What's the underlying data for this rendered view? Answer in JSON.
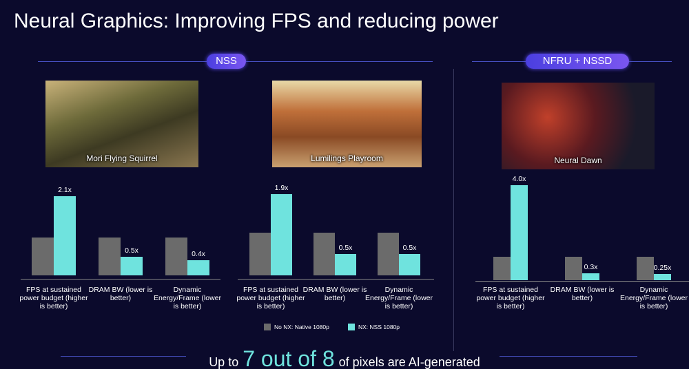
{
  "slide": {
    "title": "Neural Graphics: Improving FPS and reducing power",
    "sections": [
      "NSS",
      "NFRU + NSSD"
    ],
    "images": [
      "Mori Flying Squirrel",
      "Lumilings Playroom",
      "Neural Dawn"
    ],
    "footer": [
      "Up to",
      "7 out of 8",
      "of pixels are AI-generated"
    ]
  },
  "chart_data": [
    {
      "type": "bar",
      "categories": [
        "FPS at sustained power budget (higher is better)",
        "DRAM BW (lower is better)",
        "Dynamic Energy/Frame (lower is better)"
      ],
      "series": [
        {
          "color": "#6b6b6b",
          "values": [
            1,
            1,
            1
          ]
        },
        {
          "color": "#6fe3de",
          "values": [
            2.1,
            0.5,
            0.4
          ],
          "value_labels": [
            "2.1x",
            "0.5x",
            "0.4x"
          ]
        }
      ]
    },
    {
      "type": "bar",
      "categories": [
        "FPS at sustained power budget (higher is better)",
        "DRAM BW (lower is better)",
        "Dynamic Energy/Frame (lower is better)"
      ],
      "series": [
        {
          "name": "No NX: Native 1080p",
          "color": "#6b6b6b",
          "values": [
            1,
            1,
            1
          ]
        },
        {
          "name": "NX: NSS 1080p",
          "color": "#6fe3de",
          "values": [
            1.9,
            0.5,
            0.5
          ],
          "value_labels": [
            "1.9x",
            "0.5x",
            "0.5x"
          ]
        }
      ]
    },
    {
      "type": "bar",
      "categories": [
        "FPS at sustained power budget (higher is better)",
        "DRAM BW (lower is better)",
        "Dynamic Energy/Frame (lower is better)"
      ],
      "series": [
        {
          "color": "#6b6b6b",
          "values": [
            1,
            1,
            1
          ]
        },
        {
          "color": "#6fe3de",
          "values": [
            4.0,
            0.3,
            0.25
          ],
          "value_labels": [
            "4.0x",
            "0.3x",
            "0.25x"
          ]
        }
      ]
    }
  ]
}
